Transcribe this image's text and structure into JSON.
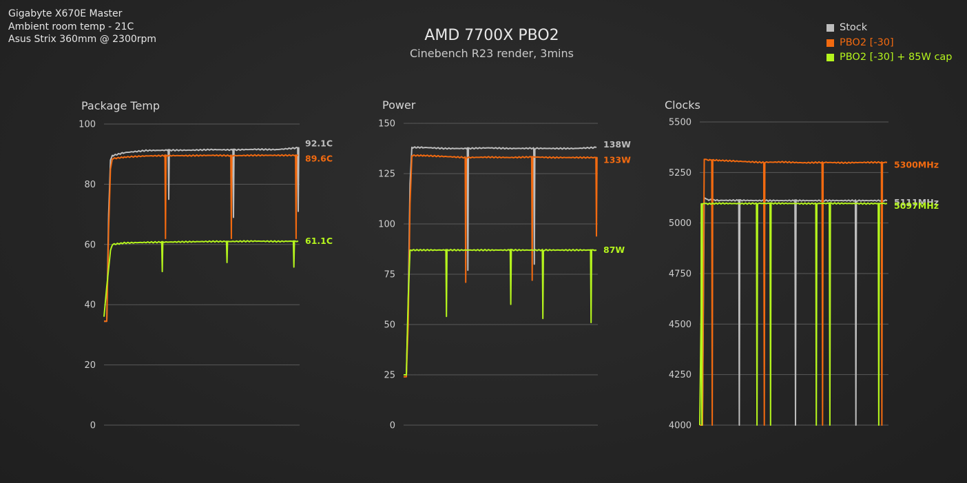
{
  "info": {
    "line1": "Gigabyte X670E Master",
    "line2": "Ambient room temp - 21C",
    "line3": "Asus Strix 360mm @ 2300rpm"
  },
  "title": "AMD 7700X PBO2",
  "subtitle": "Cinebench R23 render, 3mins",
  "legend": [
    {
      "label": "Stock",
      "color": "#bdbdbd"
    },
    {
      "label": "PBO2 [-30]",
      "color": "#f26a10"
    },
    {
      "label": "PBO2 [-30] + 85W cap",
      "color": "#b5f51d"
    }
  ],
  "chart_data": [
    {
      "type": "line",
      "title": "Package Temp",
      "ylim": [
        0,
        100
      ],
      "yticks": [
        "0",
        "20",
        "40",
        "60",
        "80",
        "100"
      ],
      "grid": true,
      "x": [
        0,
        3,
        5,
        7,
        9,
        20,
        40,
        60,
        80,
        100,
        120,
        140,
        160,
        180
      ],
      "series": [
        {
          "name": "Stock",
          "color": "#bdbdbd",
          "values": [
            34.5,
            34.5,
            70,
            88,
            89.5,
            90.5,
            91.2,
            91.3,
            91.3,
            91.5,
            91.4,
            91.6,
            91.5,
            92.1
          ],
          "end_label": "92.1C"
        },
        {
          "name": "PBO2 [-30]",
          "color": "#f26a10",
          "values": [
            34.5,
            34.5,
            65,
            85,
            88.5,
            89,
            89.4,
            89.5,
            89.5,
            89.6,
            89.5,
            89.6,
            89.6,
            89.6
          ],
          "end_label": "89.6C"
        },
        {
          "name": "PBO2 [-30] + 85W cap",
          "color": "#b5f51d",
          "values": [
            36,
            46,
            52,
            58,
            60,
            60.5,
            60.7,
            60.8,
            60.9,
            61,
            61,
            61.1,
            61,
            61.1
          ],
          "end_label": "61.1C"
        }
      ]
    },
    {
      "type": "line",
      "title": "Power",
      "ylim": [
        0,
        150
      ],
      "yticks": [
        "0",
        "25",
        "50",
        "75",
        "100",
        "125",
        "150"
      ],
      "grid": true,
      "x": [
        0,
        3,
        5,
        7,
        9,
        20,
        40,
        60,
        80,
        100,
        120,
        140,
        160,
        180
      ],
      "series": [
        {
          "name": "Stock",
          "color": "#bdbdbd",
          "values": [
            25,
            25,
            60,
            120,
            138,
            138,
            137.5,
            137.5,
            137.8,
            137.5,
            137.6,
            137.5,
            137.5,
            138
          ],
          "end_label": "138W"
        },
        {
          "name": "PBO2 [-30]",
          "color": "#f26a10",
          "values": [
            24,
            24,
            50,
            110,
            134,
            134,
            133.5,
            133,
            133.2,
            133,
            133.3,
            133,
            133,
            133
          ],
          "end_label": "133W"
        },
        {
          "name": "PBO2 [-30] + 85W cap",
          "color": "#b5f51d",
          "values": [
            25,
            25,
            63,
            87,
            87,
            87,
            87,
            87,
            87,
            87,
            87,
            87,
            87,
            87
          ],
          "end_label": "87W"
        }
      ]
    },
    {
      "type": "line",
      "title": "Clocks",
      "ylim": [
        4000,
        5500
      ],
      "yticks": [
        "4000",
        "4250",
        "4500",
        "4750",
        "5000",
        "5250",
        "5500"
      ],
      "grid": true,
      "x": [
        0,
        3,
        5,
        7,
        9,
        20,
        40,
        60,
        80,
        100,
        120,
        140,
        160,
        180
      ],
      "series": [
        {
          "name": "Stock",
          "color": "#bdbdbd",
          "values": [
            4000,
            4000,
            5125,
            5120,
            5115,
            5112,
            5112,
            5111,
            5111,
            5111,
            5111,
            5111,
            5111,
            5111
          ],
          "end_label": "5111MHz"
        },
        {
          "name": "PBO2 [-30]",
          "color": "#f26a10",
          "values": [
            4000,
            4000,
            5315,
            5315,
            5312,
            5310,
            5305,
            5300,
            5302,
            5298,
            5300,
            5298,
            5300,
            5300
          ],
          "end_label": "5300MHz"
        },
        {
          "name": "PBO2 [-30] + 85W cap",
          "color": "#b5f51d",
          "values": [
            4000,
            5095,
            5097,
            5097,
            5095,
            5097,
            5096,
            5097,
            5097,
            5096,
            5097,
            5097,
            5096,
            5097
          ],
          "end_label": "5097MHz"
        }
      ]
    }
  ]
}
